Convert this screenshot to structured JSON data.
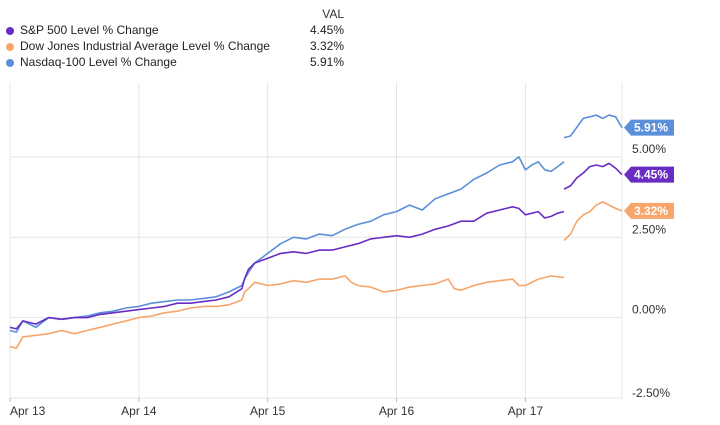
{
  "legend": {
    "header": "VAL",
    "items": [
      {
        "name": "S&P 500 Level % Change",
        "value": "4.45%",
        "color": "#6a2dc4"
      },
      {
        "name": "Dow Jones Industrial Average Level % Change",
        "value": "3.32%",
        "color": "#f7a56a"
      },
      {
        "name": "Nasdaq-100 Level % Change",
        "value": "5.91%",
        "color": "#5b8fd9"
      }
    ]
  },
  "chart_data": {
    "type": "line",
    "title": "",
    "xlabel": "",
    "ylabel": "",
    "x_ticks": [
      "Apr 13",
      "Apr 14",
      "Apr 15",
      "Apr 16",
      "Apr 17"
    ],
    "y_ticks": [
      5.0,
      2.5,
      0.0,
      -2.5
    ],
    "y_tick_labels": [
      "5.00%",
      "2.50%",
      "0.00%",
      "-2.50%"
    ],
    "ylim": [
      -2.5,
      7.3
    ],
    "xlim": [
      0,
      4.75
    ],
    "grid": true,
    "series": [
      {
        "name": "Nasdaq-100 Level % Change",
        "color": "#5b8fd9",
        "end_label": "5.91%",
        "segments": [
          [
            [
              0,
              -0.4
            ],
            [
              0.05,
              -0.45
            ],
            [
              0.1,
              -0.1
            ],
            [
              0.2,
              -0.3
            ],
            [
              0.3,
              0.0
            ],
            [
              0.4,
              -0.05
            ],
            [
              0.5,
              0.0
            ],
            [
              0.6,
              0.05
            ],
            [
              0.7,
              0.15
            ],
            [
              0.8,
              0.2
            ],
            [
              0.9,
              0.3
            ],
            [
              1.0,
              0.35
            ],
            [
              1.1,
              0.45
            ],
            [
              1.2,
              0.5
            ],
            [
              1.3,
              0.55
            ],
            [
              1.4,
              0.55
            ],
            [
              1.5,
              0.6
            ],
            [
              1.6,
              0.65
            ],
            [
              1.7,
              0.8
            ],
            [
              1.8,
              1.0
            ],
            [
              1.82,
              1.2
            ],
            [
              1.85,
              1.4
            ],
            [
              1.9,
              1.7
            ],
            [
              2.0,
              2.0
            ],
            [
              2.1,
              2.3
            ],
            [
              2.2,
              2.5
            ],
            [
              2.3,
              2.45
            ],
            [
              2.4,
              2.6
            ],
            [
              2.5,
              2.55
            ],
            [
              2.6,
              2.75
            ],
            [
              2.7,
              2.9
            ],
            [
              2.8,
              3.0
            ],
            [
              2.9,
              3.2
            ],
            [
              3.0,
              3.3
            ],
            [
              3.1,
              3.5
            ],
            [
              3.2,
              3.35
            ],
            [
              3.3,
              3.7
            ],
            [
              3.4,
              3.85
            ],
            [
              3.5,
              4.0
            ],
            [
              3.6,
              4.3
            ],
            [
              3.7,
              4.5
            ],
            [
              3.8,
              4.75
            ],
            [
              3.9,
              4.85
            ],
            [
              3.95,
              5.0
            ],
            [
              4.0,
              4.6
            ],
            [
              4.05,
              4.75
            ],
            [
              4.1,
              4.85
            ],
            [
              4.15,
              4.6
            ],
            [
              4.2,
              4.55
            ],
            [
              4.25,
              4.7
            ],
            [
              4.3,
              4.85
            ]
          ],
          [
            [
              4.3,
              5.6
            ],
            [
              4.35,
              5.65
            ],
            [
              4.45,
              6.2
            ],
            [
              4.5,
              6.25
            ],
            [
              4.55,
              6.3
            ],
            [
              4.6,
              6.2
            ],
            [
              4.65,
              6.3
            ],
            [
              4.7,
              6.25
            ],
            [
              4.75,
              5.91
            ]
          ]
        ]
      },
      {
        "name": "S&P 500 Level % Change",
        "color": "#6a2dc4",
        "end_label": "4.45%",
        "segments": [
          [
            [
              0,
              -0.3
            ],
            [
              0.05,
              -0.35
            ],
            [
              0.1,
              -0.1
            ],
            [
              0.2,
              -0.2
            ],
            [
              0.3,
              0.0
            ],
            [
              0.4,
              -0.05
            ],
            [
              0.5,
              0.0
            ],
            [
              0.6,
              0.0
            ],
            [
              0.7,
              0.1
            ],
            [
              0.8,
              0.15
            ],
            [
              0.9,
              0.2
            ],
            [
              1.0,
              0.25
            ],
            [
              1.1,
              0.3
            ],
            [
              1.2,
              0.35
            ],
            [
              1.3,
              0.45
            ],
            [
              1.4,
              0.45
            ],
            [
              1.5,
              0.5
            ],
            [
              1.6,
              0.55
            ],
            [
              1.7,
              0.65
            ],
            [
              1.8,
              0.9
            ],
            [
              1.82,
              1.2
            ],
            [
              1.85,
              1.5
            ],
            [
              1.9,
              1.7
            ],
            [
              2.0,
              1.85
            ],
            [
              2.1,
              2.0
            ],
            [
              2.2,
              2.05
            ],
            [
              2.3,
              2.0
            ],
            [
              2.4,
              2.1
            ],
            [
              2.5,
              2.1
            ],
            [
              2.6,
              2.2
            ],
            [
              2.7,
              2.3
            ],
            [
              2.8,
              2.45
            ],
            [
              2.9,
              2.5
            ],
            [
              3.0,
              2.55
            ],
            [
              3.1,
              2.5
            ],
            [
              3.2,
              2.6
            ],
            [
              3.3,
              2.75
            ],
            [
              3.4,
              2.85
            ],
            [
              3.5,
              3.0
            ],
            [
              3.6,
              3.0
            ],
            [
              3.7,
              3.25
            ],
            [
              3.8,
              3.35
            ],
            [
              3.9,
              3.45
            ],
            [
              3.95,
              3.4
            ],
            [
              4.0,
              3.2
            ],
            [
              4.1,
              3.3
            ],
            [
              4.15,
              3.1
            ],
            [
              4.2,
              3.15
            ],
            [
              4.25,
              3.25
            ],
            [
              4.3,
              3.3
            ]
          ],
          [
            [
              4.3,
              4.0
            ],
            [
              4.35,
              4.1
            ],
            [
              4.4,
              4.35
            ],
            [
              4.45,
              4.5
            ],
            [
              4.5,
              4.7
            ],
            [
              4.55,
              4.75
            ],
            [
              4.6,
              4.7
            ],
            [
              4.65,
              4.8
            ],
            [
              4.7,
              4.65
            ],
            [
              4.75,
              4.45
            ]
          ]
        ]
      },
      {
        "name": "Dow Jones Industrial Average Level % Change",
        "color": "#f7a56a",
        "end_label": "3.32%",
        "segments": [
          [
            [
              0,
              -0.9
            ],
            [
              0.05,
              -0.95
            ],
            [
              0.1,
              -0.6
            ],
            [
              0.2,
              -0.55
            ],
            [
              0.3,
              -0.5
            ],
            [
              0.4,
              -0.4
            ],
            [
              0.5,
              -0.5
            ],
            [
              0.6,
              -0.4
            ],
            [
              0.7,
              -0.3
            ],
            [
              0.8,
              -0.2
            ],
            [
              0.9,
              -0.1
            ],
            [
              1.0,
              0.0
            ],
            [
              1.1,
              0.05
            ],
            [
              1.2,
              0.15
            ],
            [
              1.3,
              0.2
            ],
            [
              1.4,
              0.3
            ],
            [
              1.5,
              0.35
            ],
            [
              1.6,
              0.35
            ],
            [
              1.7,
              0.4
            ],
            [
              1.8,
              0.55
            ],
            [
              1.82,
              0.8
            ],
            [
              1.85,
              0.9
            ],
            [
              1.9,
              1.1
            ],
            [
              2.0,
              1.0
            ],
            [
              2.1,
              1.05
            ],
            [
              2.2,
              1.15
            ],
            [
              2.3,
              1.1
            ],
            [
              2.4,
              1.2
            ],
            [
              2.5,
              1.2
            ],
            [
              2.6,
              1.3
            ],
            [
              2.65,
              1.1
            ],
            [
              2.7,
              1.0
            ],
            [
              2.8,
              0.95
            ],
            [
              2.9,
              0.8
            ],
            [
              3.0,
              0.85
            ],
            [
              3.1,
              0.95
            ],
            [
              3.2,
              1.0
            ],
            [
              3.3,
              1.05
            ],
            [
              3.4,
              1.2
            ],
            [
              3.45,
              0.9
            ],
            [
              3.5,
              0.85
            ],
            [
              3.6,
              1.0
            ],
            [
              3.7,
              1.1
            ],
            [
              3.8,
              1.15
            ],
            [
              3.9,
              1.2
            ],
            [
              3.95,
              1.0
            ],
            [
              4.0,
              1.0
            ],
            [
              4.1,
              1.2
            ],
            [
              4.2,
              1.3
            ],
            [
              4.3,
              1.25
            ]
          ],
          [
            [
              4.3,
              2.4
            ],
            [
              4.35,
              2.6
            ],
            [
              4.4,
              3.0
            ],
            [
              4.45,
              3.2
            ],
            [
              4.5,
              3.3
            ],
            [
              4.55,
              3.5
            ],
            [
              4.6,
              3.6
            ],
            [
              4.65,
              3.5
            ],
            [
              4.7,
              3.4
            ],
            [
              4.75,
              3.32
            ]
          ]
        ]
      }
    ]
  }
}
